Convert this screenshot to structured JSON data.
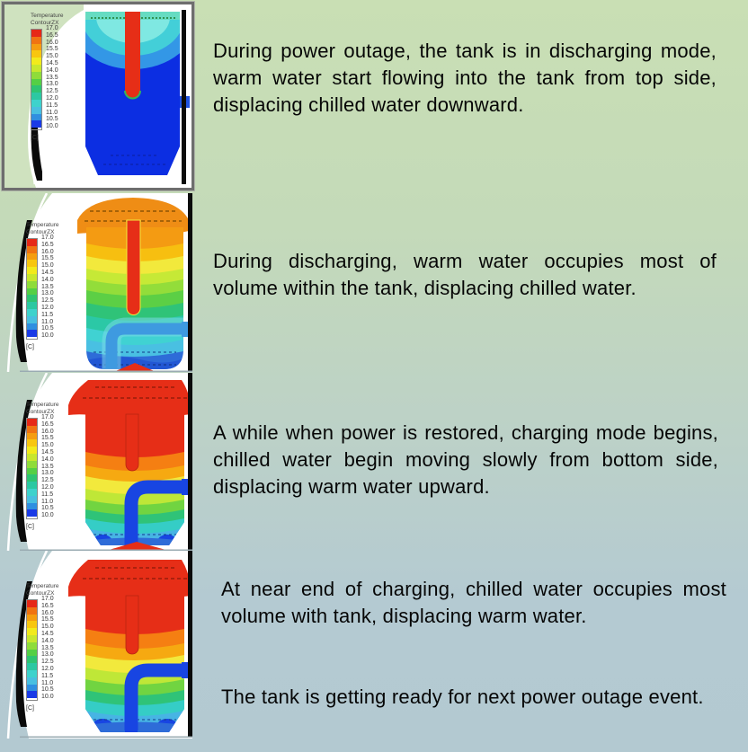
{
  "page": {
    "background_top": "#c9dfb4",
    "background_bottom": "#b3c9d1"
  },
  "legend": {
    "title_line1": "Temperature",
    "title_line2": "ContourZX",
    "values": [
      "17.0",
      "16.5",
      "16.0",
      "15.5",
      "15.0",
      "14.5",
      "14.0",
      "13.5",
      "13.0",
      "12.5",
      "12.0",
      "11.5",
      "11.0",
      "10.5",
      "10.0"
    ],
    "unit": "[C]",
    "cell_colors": [
      "#e62817",
      "#f07312",
      "#f59d10",
      "#f8c60f",
      "#f2ea1c",
      "#c8e72e",
      "#8fdc3a",
      "#55cf45",
      "#2fc472",
      "#2cc8a2",
      "#3ed2cc",
      "#48bfe0",
      "#2f8fe0",
      "#1a3ae6"
    ]
  },
  "palette": {
    "hot": "#e62e17",
    "warm": "#f49b12",
    "mid": "#f2e93c",
    "cool": "#55cf45",
    "cold_cyan": "#40d2d2",
    "cold_blue": "#2e6cd8",
    "chilled": "#0c2ee2"
  },
  "captions": {
    "block1": "During  power  outage,  the tank  is  in discharging  mode, warm  water  start flowing  into the  tank  from  top  side, displacing chilled water downward.",
    "block2": "During discharging, warm water occupies most of volume within the tank, displacing chilled water.",
    "block3": "A  while  when  power  is  restored, charging  mode begins,  chilled  water begin moving slowly from bottom side, displacing warm water upward.",
    "block4": "At near end of charging, chilled water occupies most volume with tank, displacing warm water.",
    "block5": "The tank is getting ready for next power outage event."
  }
}
